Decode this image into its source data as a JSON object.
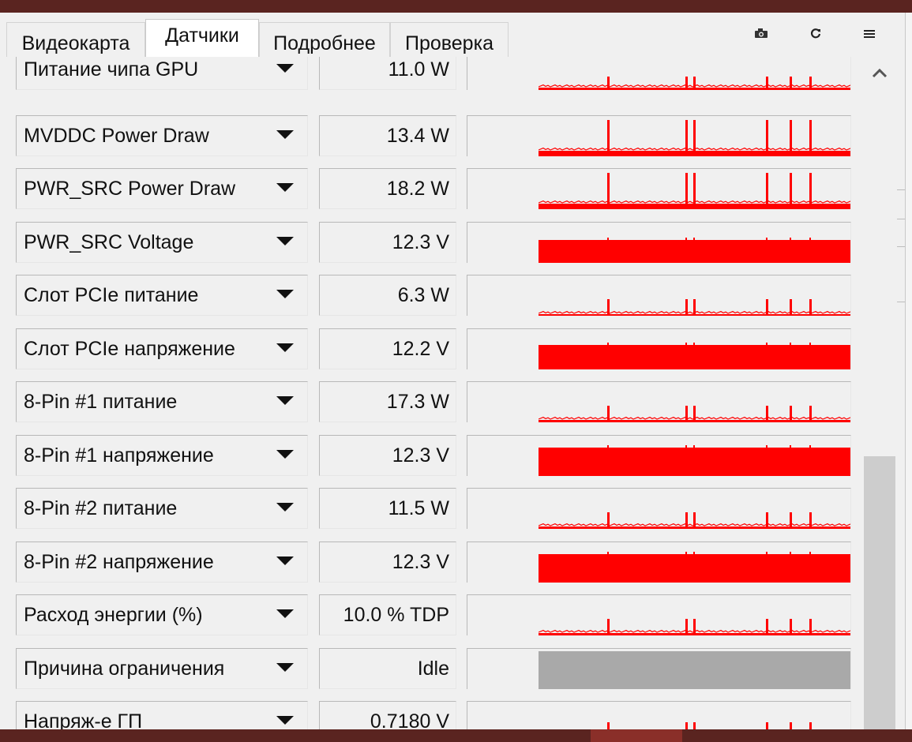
{
  "tabs": [
    {
      "label": "Видеокарта",
      "active": false
    },
    {
      "label": "Датчики",
      "active": true
    },
    {
      "label": "Подробнее",
      "active": false
    },
    {
      "label": "Проверка",
      "active": false
    }
  ],
  "toolbar": {
    "screenshot_icon": "camera-icon",
    "refresh_icon": "refresh-icon",
    "menu_icon": "menu-icon"
  },
  "colors": {
    "graph_line": "#ff0000",
    "graph_idle": "#a9a9a9",
    "window_bg": "#f0f0f0",
    "title_bar": "#5a2420"
  },
  "sensors": [
    {
      "name": "Питание чипа GPU",
      "value": "11.0 W",
      "graph": "spiky",
      "level": 0.07,
      "spike": 0.2
    },
    {
      "name": "MVDDC Power Draw",
      "value": "13.4 W",
      "graph": "spiky",
      "level": 0.15,
      "spike": 0.8
    },
    {
      "name": "PWR_SRC Power Draw",
      "value": "18.2 W",
      "graph": "spiky",
      "level": 0.15,
      "spike": 0.8
    },
    {
      "name": "PWR_SRC Voltage",
      "value": "12.3 V",
      "graph": "full",
      "level": 0.58,
      "spike": 0
    },
    {
      "name": "Слот PCIe питание",
      "value": "6.3 W",
      "graph": "spiky",
      "level": 0.06,
      "spike": 0.3
    },
    {
      "name": "Слот PCIe напряжение",
      "value": "12.2 V",
      "graph": "full",
      "level": 0.62,
      "spike": 0.05
    },
    {
      "name": "8-Pin #1 питание",
      "value": "17.3 W",
      "graph": "spiky",
      "level": 0.08,
      "spike": 0.3
    },
    {
      "name": "8-Pin #1 напряжение",
      "value": "12.3 V",
      "graph": "full",
      "level": 0.72,
      "spike": 0
    },
    {
      "name": "8-Pin #2 питание",
      "value": "11.5 W",
      "graph": "spiky",
      "level": 0.07,
      "spike": 0.3
    },
    {
      "name": "8-Pin #2 напряжение",
      "value": "12.3 V",
      "graph": "full",
      "level": 0.72,
      "spike": 0
    },
    {
      "name": "Расход энергии (%)",
      "value": "10.0 % TDP",
      "graph": "spiky",
      "level": 0.07,
      "spike": 0.3
    },
    {
      "name": "Причина ограничения",
      "value": "Idle",
      "graph": "idle",
      "level": 0.95,
      "spike": 0
    },
    {
      "name": "Напряж-е ГП",
      "value": "0.7180 V",
      "graph": "spiky",
      "level": 0.18,
      "spike": 0.3
    }
  ]
}
